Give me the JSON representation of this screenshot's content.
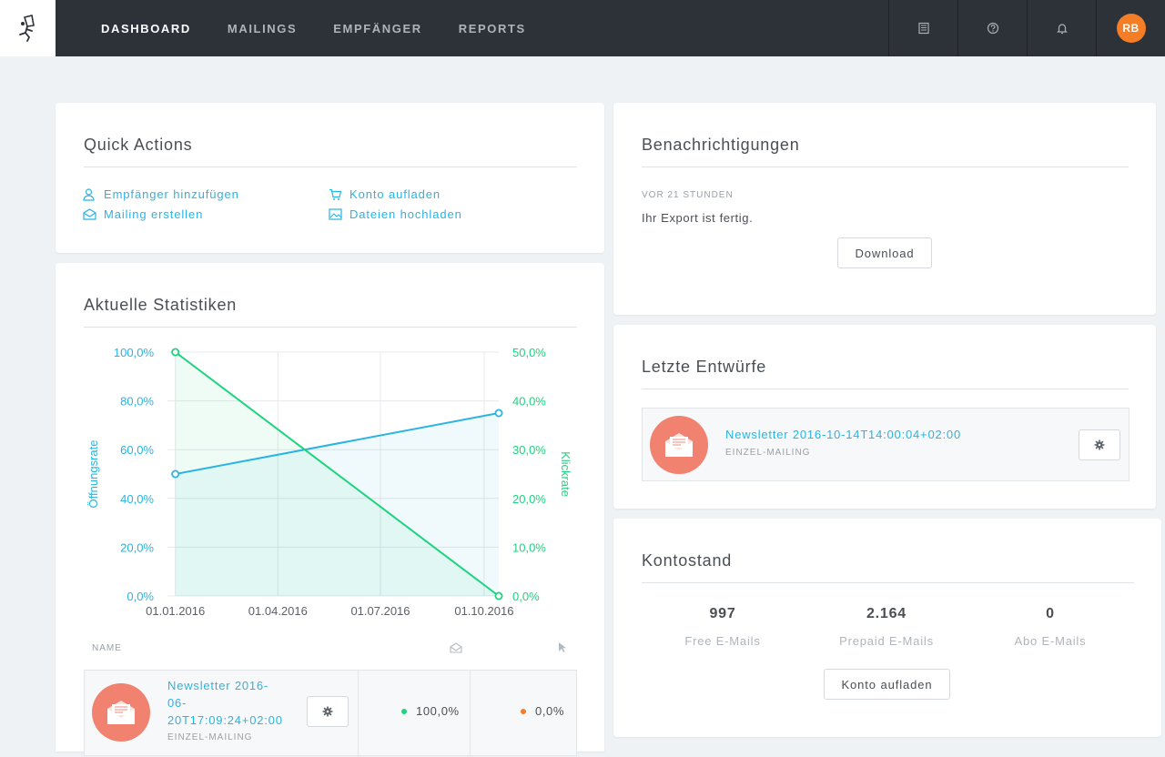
{
  "nav": {
    "items": [
      "DASHBOARD",
      "MAILINGS",
      "EMPFÄNGER",
      "REPORTS"
    ],
    "avatar_initials": "RB"
  },
  "icons": {
    "logo": "runner-logo-icon",
    "book": "book-icon",
    "help": "help-circle-icon",
    "bell": "bell-icon"
  },
  "colors": {
    "accent_blue": "#29b4e4",
    "accent_green": "#1ed37e",
    "avatar": "#f47d25",
    "topbar": "#2d3239",
    "mail_circle": "#f0826f"
  },
  "quick_actions": {
    "title": "Quick Actions",
    "add_recipient": "Empfänger hinzufügen",
    "create_mailing": "Mailing erstellen",
    "top_up": "Konto aufladen",
    "upload_files": "Dateien hochladen"
  },
  "statistics": {
    "title": "Aktuelle Statistiken",
    "table_header_name": "NAME",
    "row": {
      "name": "Newsletter 2016-06-20T17:09:24+02:00",
      "name_lines": [
        "Newsletter 2016-",
        "06-",
        "20T17:09:24+02:00"
      ],
      "type": "EINZEL-MAILING",
      "open_rate": "100,0%",
      "click_rate": "0,0%"
    }
  },
  "chart_data": {
    "type": "line",
    "xlabel": "",
    "ylabel": "Öffnungsrate",
    "y2label": "Klickrate",
    "x_ticks": [
      "01.01.2016",
      "01.04.2016",
      "01.07.2016",
      "01.10.2016"
    ],
    "y_ticks": [
      "0,0%",
      "20,0%",
      "40,0%",
      "60,0%",
      "80,0%",
      "100,0%"
    ],
    "y2_ticks": [
      "0,0%",
      "10,0%",
      "20,0%",
      "30,0%",
      "40,0%",
      "50,0%"
    ],
    "ylim": [
      0,
      100
    ],
    "y2lim": [
      0,
      50
    ],
    "xlim": [
      "2015-12-25",
      "2016-10-14"
    ],
    "grid": true,
    "series": [
      {
        "name": "Öffnungsrate",
        "axis": "left",
        "color": "#29b4e4",
        "x": [
          "2016-01-01",
          "2016-10-14"
        ],
        "y": [
          50,
          75
        ]
      },
      {
        "name": "Klickrate",
        "axis": "right",
        "color": "#1ed37e",
        "x": [
          "2016-01-01",
          "2016-10-14"
        ],
        "y": [
          50,
          0
        ]
      }
    ]
  },
  "notifications": {
    "title": "Benachrichtigungen",
    "time": "VOR 21 STUNDEN",
    "message": "Ihr Export ist fertig.",
    "download_label": "Download"
  },
  "drafts": {
    "title": "Letzte Entwürfe",
    "item_name": "Newsletter 2016-10-14T14:00:04+02:00",
    "item_type": "EINZEL-MAILING"
  },
  "account": {
    "title": "Kontostand",
    "stats": [
      {
        "value": "997",
        "label": "Free E-Mails"
      },
      {
        "value": "2.164",
        "label": "Prepaid E-Mails"
      },
      {
        "value": "0",
        "label": "Abo E-Mails"
      }
    ],
    "topup_label": "Konto aufladen"
  }
}
